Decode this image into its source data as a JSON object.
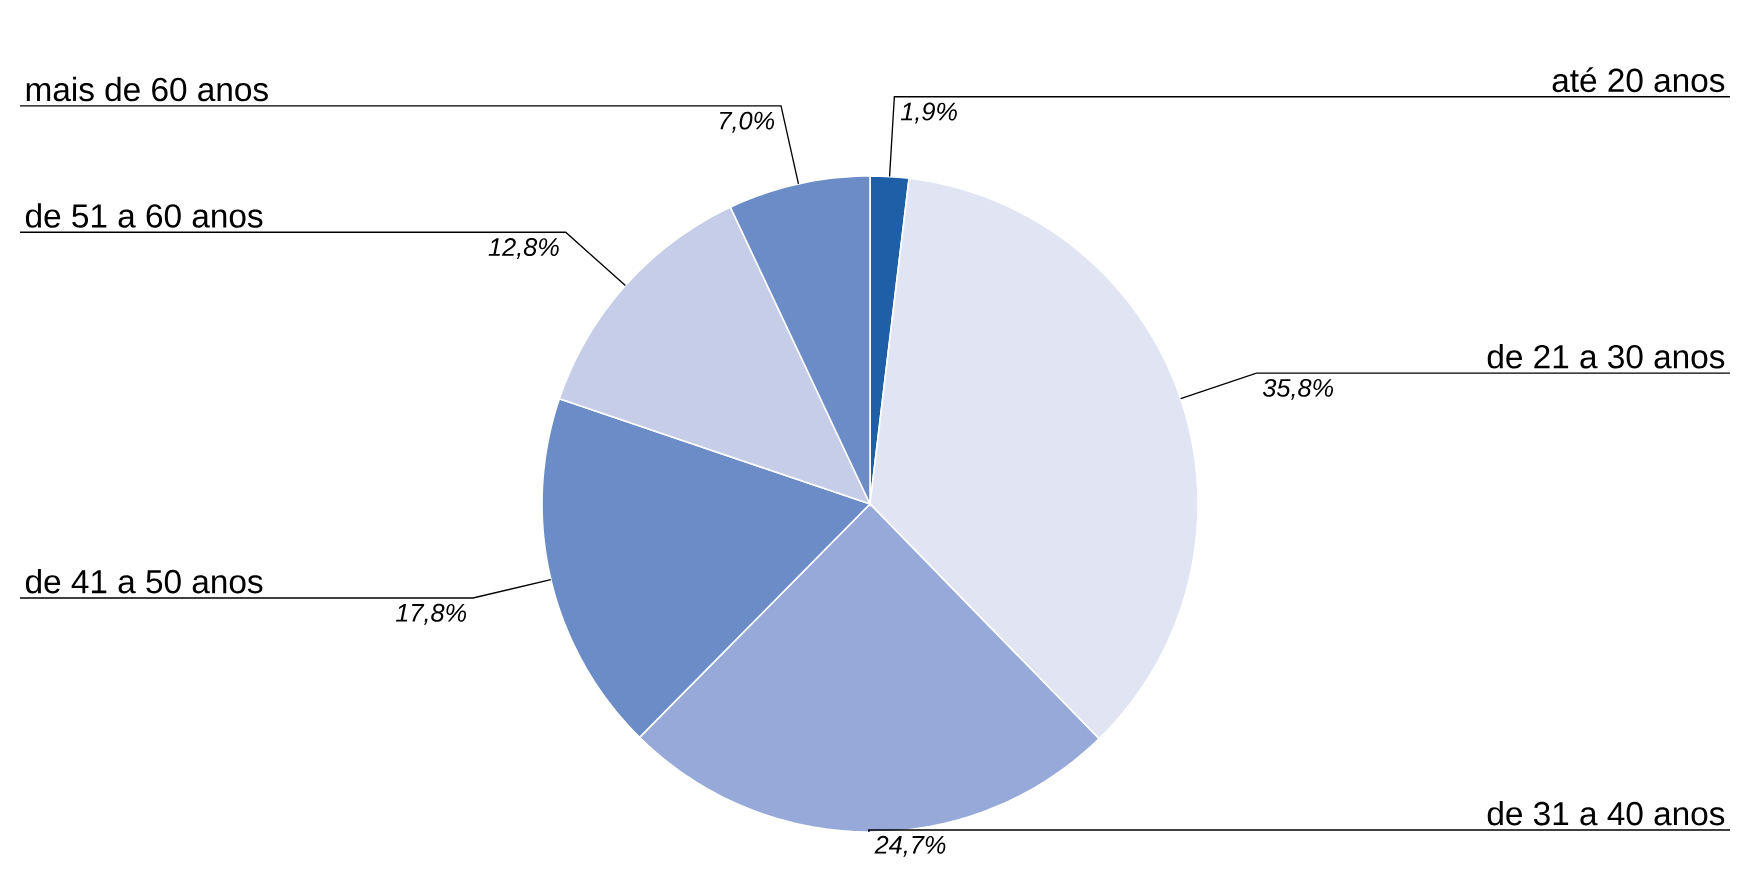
{
  "chart_data": {
    "type": "pie",
    "categories": [
      "até 20 anos",
      "de 21 a 30 anos",
      "de 31 a 40 anos",
      "de 41 a 50 anos",
      "de 51 a 60 anos",
      "mais de 60 anos"
    ],
    "values": [
      1.9,
      35.8,
      24.7,
      17.8,
      12.8,
      7.0
    ],
    "value_labels": [
      "1,9%",
      "35,8%",
      "24,7%",
      "17,8%",
      "12,8%",
      "7,0%"
    ],
    "colors": [
      "#1f5fa8",
      "#e0e4f3",
      "#97a9d8",
      "#6c8cc8",
      "#c5cde9",
      "#6c8cc8"
    ]
  }
}
